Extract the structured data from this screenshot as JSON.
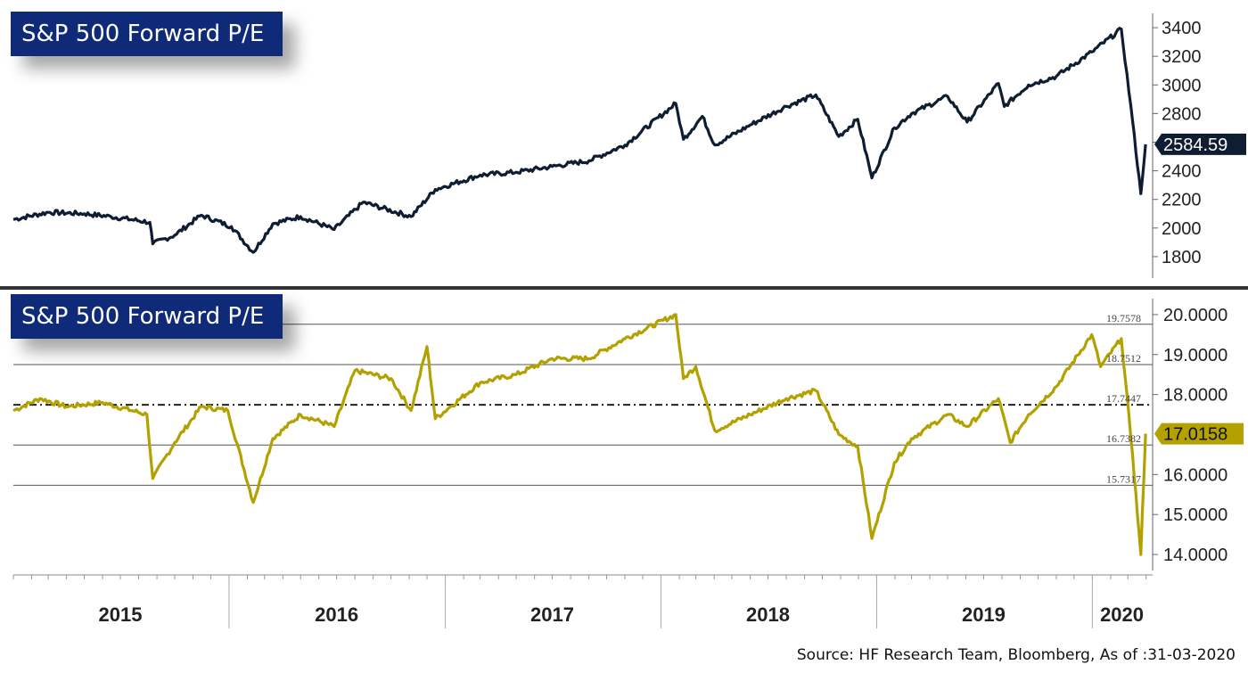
{
  "source_note": "Source: HF Research Team, Bloomberg, As of :31-03-2020",
  "chart_data": [
    {
      "type": "line",
      "title": "S&P 500 Forward P/E",
      "color": "#0f1d33",
      "ylim": [
        1650,
        3500
      ],
      "yticks": [
        "3400",
        "3200",
        "3000",
        "2800",
        "2600",
        "2400",
        "2200",
        "2000",
        "1800"
      ],
      "last_value_label": "2584.59",
      "x": [
        "2015-01-01",
        "2015-03-01",
        "2015-05-01",
        "2015-06-15",
        "2015-08-20",
        "2015-08-25",
        "2015-10-01",
        "2015-11-15",
        "2016-01-05",
        "2016-02-11",
        "2016-03-15",
        "2016-05-01",
        "2016-06-27",
        "2016-08-15",
        "2016-11-04",
        "2016-12-15",
        "2017-03-01",
        "2017-05-01",
        "2017-07-01",
        "2017-09-01",
        "2017-11-01",
        "2018-01-26",
        "2018-02-08",
        "2018-03-12",
        "2018-04-02",
        "2018-06-01",
        "2018-08-01",
        "2018-09-20",
        "2018-10-29",
        "2018-11-30",
        "2018-12-24",
        "2019-01-31",
        "2019-03-01",
        "2019-05-01",
        "2019-06-03",
        "2019-07-26",
        "2019-08-05",
        "2019-09-15",
        "2019-11-01",
        "2019-12-31",
        "2020-02-19",
        "2020-03-09",
        "2020-03-23",
        "2020-03-31"
      ],
      "values": [
        2060,
        2110,
        2100,
        2080,
        2040,
        1890,
        1950,
        2090,
        2010,
        1830,
        2030,
        2080,
        1990,
        2180,
        2080,
        2270,
        2370,
        2390,
        2430,
        2470,
        2580,
        2870,
        2620,
        2780,
        2580,
        2720,
        2850,
        2930,
        2640,
        2760,
        2350,
        2700,
        2800,
        2920,
        2740,
        3010,
        2850,
        3000,
        3060,
        3230,
        3390,
        2750,
        2240,
        2585
      ]
    },
    {
      "type": "line",
      "title": "S&P 500 Forward P/E",
      "color": "#b3a100",
      "ylim": [
        13.6,
        20.4
      ],
      "yticks": [
        "20.0000",
        "19.0000",
        "18.0000",
        "16.0000",
        "15.0000",
        "14.0000"
      ],
      "last_value_label": "17.0158",
      "reference_lines": [
        {
          "label": "19.7578",
          "value": 19.7578,
          "style": "solid"
        },
        {
          "label": "18.7512",
          "value": 18.7512,
          "style": "solid"
        },
        {
          "label": "17.7447",
          "value": 17.7447,
          "style": "dashed"
        },
        {
          "label": "16.7382",
          "value": 16.7382,
          "style": "solid"
        },
        {
          "label": "15.7317",
          "value": 15.7317,
          "style": "solid"
        }
      ],
      "x": [
        "2015-01-01",
        "2015-02-15",
        "2015-04-01",
        "2015-06-01",
        "2015-08-15",
        "2015-08-25",
        "2015-10-01",
        "2015-11-15",
        "2015-12-30",
        "2016-02-11",
        "2016-03-15",
        "2016-05-01",
        "2016-06-27",
        "2016-08-01",
        "2016-10-01",
        "2016-11-04",
        "2016-12-01",
        "2016-12-15",
        "2017-01-10",
        "2017-03-01",
        "2017-05-01",
        "2017-07-01",
        "2017-09-01",
        "2017-11-01",
        "2018-01-26",
        "2018-02-08",
        "2018-03-01",
        "2018-04-02",
        "2018-06-01",
        "2018-08-01",
        "2018-09-20",
        "2018-10-29",
        "2018-11-30",
        "2018-12-24",
        "2019-01-31",
        "2019-03-01",
        "2019-05-01",
        "2019-06-03",
        "2019-07-26",
        "2019-08-15",
        "2019-09-15",
        "2019-11-01",
        "2019-12-31",
        "2020-01-15",
        "2020-02-19",
        "2020-03-09",
        "2020-03-23",
        "2020-03-31"
      ],
      "values": [
        17.6,
        17.9,
        17.7,
        17.8,
        17.5,
        15.9,
        16.8,
        17.7,
        17.6,
        15.3,
        16.9,
        17.5,
        17.2,
        18.6,
        18.4,
        17.6,
        19.2,
        17.4,
        17.7,
        18.3,
        18.5,
        18.9,
        18.9,
        19.4,
        20.0,
        18.4,
        18.7,
        17.1,
        17.5,
        17.9,
        18.1,
        17.0,
        16.7,
        14.4,
        16.3,
        16.9,
        17.5,
        17.2,
        17.9,
        16.8,
        17.5,
        18.2,
        19.5,
        18.7,
        19.4,
        16.5,
        14.0,
        17.02
      ]
    }
  ],
  "x_axis": {
    "start": "2015-01-01",
    "end": "2020-04-15",
    "year_labels": [
      {
        "label": "2015",
        "mid": "2015-07-01"
      },
      {
        "label": "2016",
        "mid": "2016-07-01"
      },
      {
        "label": "2017",
        "mid": "2017-07-01"
      },
      {
        "label": "2018",
        "mid": "2018-07-01"
      },
      {
        "label": "2019",
        "mid": "2019-07-01"
      },
      {
        "label": "2020",
        "mid": "2020-02-20"
      }
    ],
    "year_boundaries": [
      "2016-01-01",
      "2017-01-01",
      "2018-01-01",
      "2019-01-01",
      "2020-01-01"
    ]
  }
}
